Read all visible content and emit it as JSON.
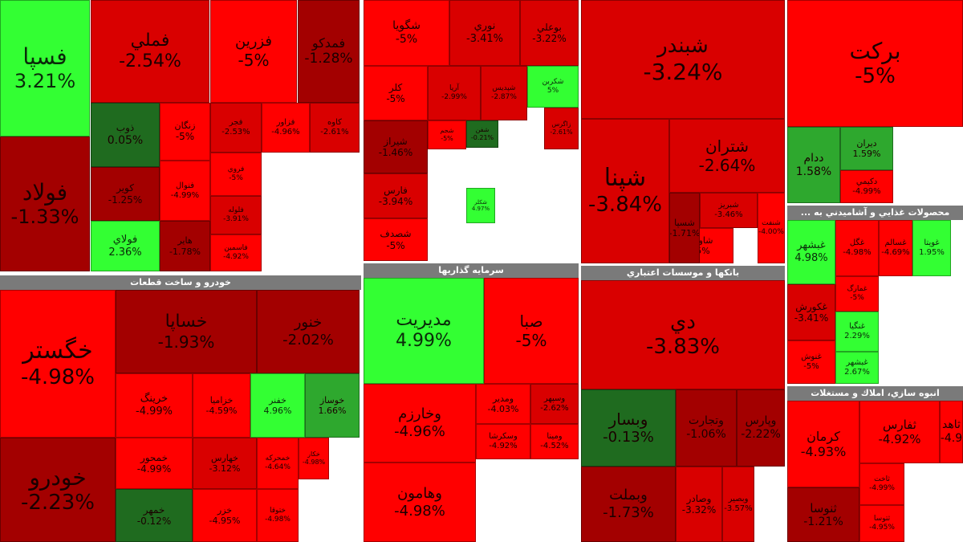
{
  "chart_data": {
    "type": "treemap",
    "colors": {
      "strong_negative": "#ff0000",
      "mild_negative": "#a30000",
      "near_zero": "#8c0000",
      "positive": "#33ff33",
      "weak_positive": "#1f6b1f"
    },
    "sectors": [
      {
        "title": "",
        "items": [
          {
            "name": "فسپا",
            "change": "3.21%"
          },
          {
            "name": "فملي",
            "change": "-2.54%"
          },
          {
            "name": "فزرين",
            "change": "-5%"
          },
          {
            "name": "فمدكو",
            "change": "-1.28%"
          },
          {
            "name": "فولاد",
            "change": "-1.33%"
          },
          {
            "name": "ذوب",
            "change": "0.05%"
          },
          {
            "name": "زنگان",
            "change": "-5%"
          },
          {
            "name": "فجر",
            "change": "-2.53%"
          },
          {
            "name": "فزاور",
            "change": "-4.96%"
          },
          {
            "name": "كاوه",
            "change": "-2.61%"
          },
          {
            "name": "كوير",
            "change": "-1.25%"
          },
          {
            "name": "فنوال",
            "change": "-4.99%"
          },
          {
            "name": "فروي",
            "change": "-5%"
          },
          {
            "name": "فلوله",
            "change": "-3.91%"
          },
          {
            "name": "فولاي",
            "change": "2.36%"
          },
          {
            "name": "هاير",
            "change": "-1.78%"
          },
          {
            "name": "فاسمين",
            "change": "-4.92%"
          }
        ]
      },
      {
        "title": "خودرو و ساخت قطعات",
        "items": [
          {
            "name": "خگستر",
            "change": "-4.98%"
          },
          {
            "name": "خساپا",
            "change": "-1.93%"
          },
          {
            "name": "خنور",
            "change": "-2.02%"
          },
          {
            "name": "خرينگ",
            "change": "-4.99%"
          },
          {
            "name": "خزاميا",
            "change": "-4.59%"
          },
          {
            "name": "خفنر",
            "change": "4.96%"
          },
          {
            "name": "خوساز",
            "change": "1.66%"
          },
          {
            "name": "خودرو",
            "change": "-2.23%"
          },
          {
            "name": "خمحور",
            "change": "-4.99%"
          },
          {
            "name": "خهارس",
            "change": "-3.12%"
          },
          {
            "name": "خمحركه",
            "change": "-4.64%"
          },
          {
            "name": "خكار",
            "change": "-4.98%"
          },
          {
            "name": "خمهر",
            "change": "-0.12%"
          },
          {
            "name": "خزر",
            "change": "-4.95%"
          },
          {
            "name": "ختوقا",
            "change": "-4.98%"
          }
        ]
      },
      {
        "title": "",
        "items": [
          {
            "name": "شگويا",
            "change": "-5%"
          },
          {
            "name": "نوري",
            "change": "-3.41%"
          },
          {
            "name": "بوعلي",
            "change": "-3.22%"
          },
          {
            "name": "كلر",
            "change": "-5%"
          },
          {
            "name": "آريا",
            "change": "-2.99%"
          },
          {
            "name": "شپديس",
            "change": "-2.87%"
          },
          {
            "name": "شكربن",
            "change": "5%"
          },
          {
            "name": "شيراز",
            "change": "-1.46%"
          },
          {
            "name": "شجم",
            "change": "-5%"
          },
          {
            "name": "زاگرس",
            "change": "-2.61%"
          },
          {
            "name": "فارس",
            "change": "-3.94%"
          },
          {
            "name": "شصدف",
            "change": "-5%"
          },
          {
            "name": "شفن",
            "change": "-0.21%"
          },
          {
            "name": "شكلر",
            "change": "4.97%"
          }
        ]
      },
      {
        "title": "سرمايه گذاريها",
        "items": [
          {
            "name": "مديريت",
            "change": "4.99%"
          },
          {
            "name": "صبا",
            "change": "-5%"
          },
          {
            "name": "وخارزم",
            "change": "-4.96%"
          },
          {
            "name": "وهامون",
            "change": "-4.98%"
          },
          {
            "name": "ومدير",
            "change": "-4.03%"
          },
          {
            "name": "وسپهر",
            "change": "-2.62%"
          },
          {
            "name": "وسكرشا",
            "change": "-4.92%"
          },
          {
            "name": "ومينا",
            "change": "-4.52%"
          }
        ]
      },
      {
        "title": "",
        "items": [
          {
            "name": "شبندر",
            "change": "-3.24%"
          },
          {
            "name": "شپنا",
            "change": "-3.84%"
          },
          {
            "name": "شتران",
            "change": "-2.64%"
          },
          {
            "name": "شاوان",
            "change": "-5%"
          },
          {
            "name": "شبريز",
            "change": "-3.46%"
          },
          {
            "name": "شسپا",
            "change": "-1.71%"
          },
          {
            "name": "شنفت",
            "change": "-4.00%"
          }
        ]
      },
      {
        "title": "بانكها و موسسات اعتباري",
        "items": [
          {
            "name": "دي",
            "change": "-3.83%"
          },
          {
            "name": "وبسار",
            "change": "-0.13%"
          },
          {
            "name": "وتجارت",
            "change": "-1.06%"
          },
          {
            "name": "وپارس",
            "change": "-2.22%"
          },
          {
            "name": "وبملت",
            "change": "-1.73%"
          },
          {
            "name": "وصادر",
            "change": "-3.32%"
          },
          {
            "name": "وبصير",
            "change": "-3.57%"
          }
        ]
      },
      {
        "title": "",
        "items": [
          {
            "name": "بركت",
            "change": "-5%"
          },
          {
            "name": "ددام",
            "change": "1.58%"
          },
          {
            "name": "ديران",
            "change": "1.59%"
          },
          {
            "name": "دكيمي",
            "change": "-4.99%"
          }
        ]
      },
      {
        "title": "... محصولات غذايي و آشاميدني به",
        "items": [
          {
            "name": "غبشهر",
            "change": "4.98%"
          },
          {
            "name": "غگل",
            "change": "-4.98%"
          },
          {
            "name": "غسالم",
            "change": "-4.69%"
          },
          {
            "name": "غويتا",
            "change": "1.95%"
          },
          {
            "name": "غكورش",
            "change": "-3.41%"
          },
          {
            "name": "غمارگ",
            "change": "-5%"
          },
          {
            "name": "غنگيا",
            "change": "2.29%"
          },
          {
            "name": "غبشهر",
            "change": "2.67%"
          },
          {
            "name": "غنوش",
            "change": "-5%"
          }
        ]
      },
      {
        "title": "انبوه سازي، املاك و مستغلات",
        "items": [
          {
            "name": "كرمان",
            "change": "-4.93%"
          },
          {
            "name": "ثفارس",
            "change": "-4.92%"
          },
          {
            "name": "ثاهد",
            "change": "-4.9"
          },
          {
            "name": "ثاخت",
            "change": "-4.99%"
          },
          {
            "name": "ثتوسا",
            "change": "-4.95%"
          },
          {
            "name": "ثنوسا",
            "change": "-1.21%"
          }
        ]
      }
    ]
  }
}
